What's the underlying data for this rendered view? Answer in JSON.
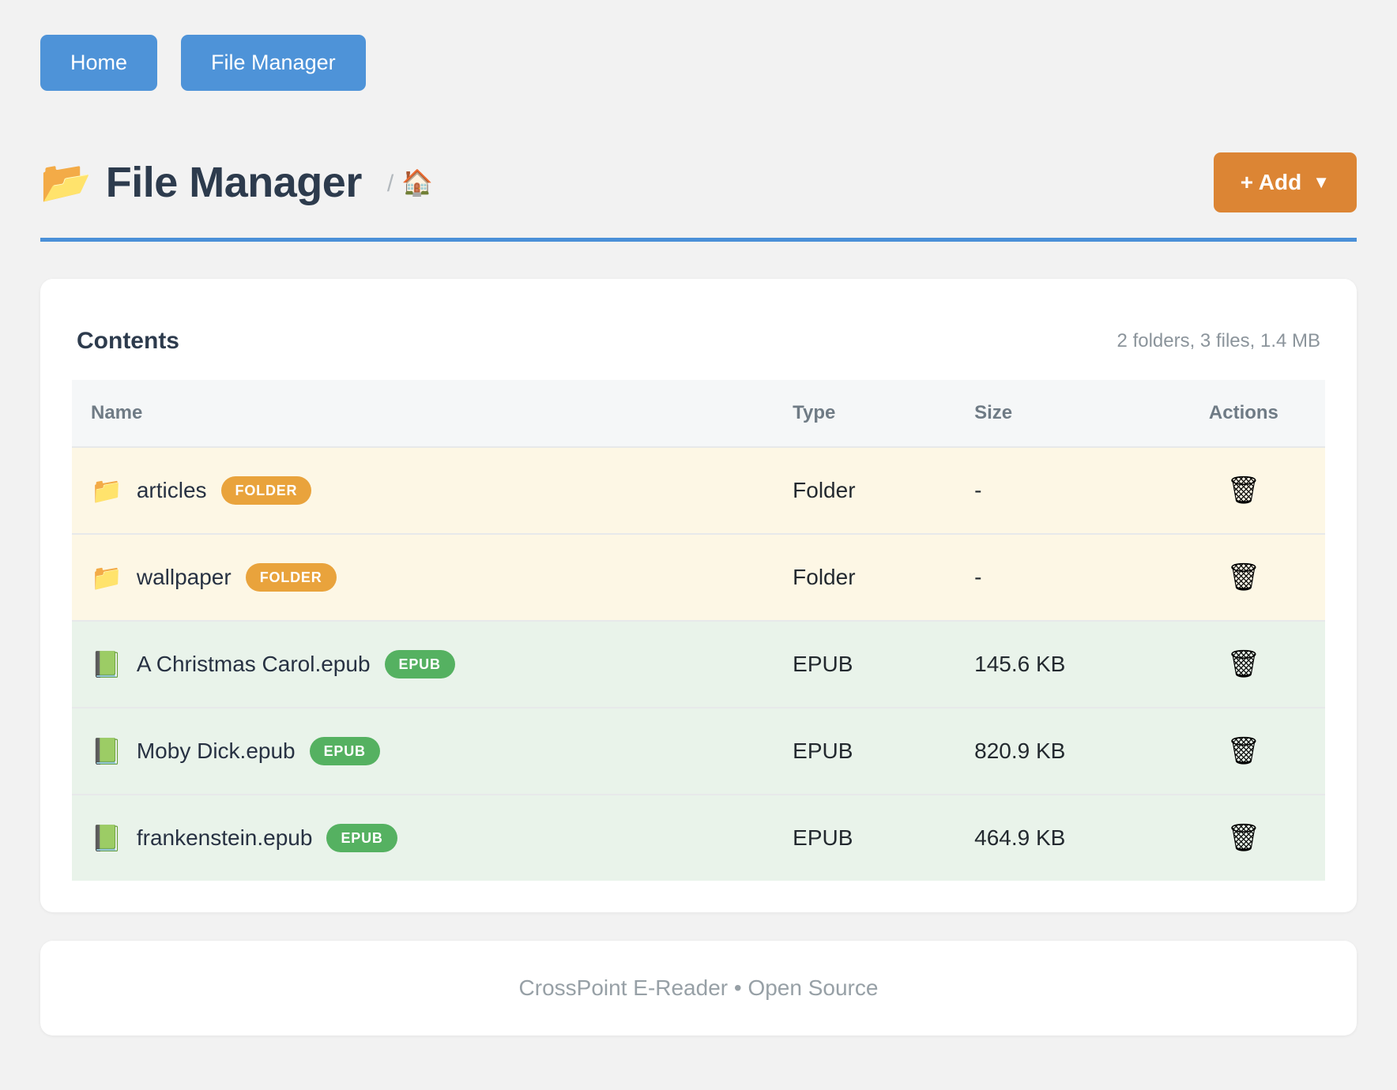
{
  "nav": {
    "home_label": "Home",
    "file_manager_label": "File Manager"
  },
  "header": {
    "title_icon": "📂",
    "title": "File Manager",
    "breadcrumb_separator": "/",
    "breadcrumb_home_icon": "🏠",
    "add_label": "+ Add",
    "add_caret": "▼"
  },
  "card": {
    "title": "Contents",
    "summary": "2 folders, 3 files, 1.4 MB",
    "table": {
      "columns": [
        "Name",
        "Type",
        "Size",
        "Actions"
      ],
      "rows": [
        {
          "icon": "📁",
          "name": "articles",
          "badge": "FOLDER",
          "kind": "folder",
          "type": "Folder",
          "size": "-",
          "action_icon": "🗑"
        },
        {
          "icon": "📁",
          "name": "wallpaper",
          "badge": "FOLDER",
          "kind": "folder",
          "type": "Folder",
          "size": "-",
          "action_icon": "🗑"
        },
        {
          "icon": "📗",
          "name": "A Christmas Carol.epub",
          "badge": "EPUB",
          "kind": "epub",
          "type": "EPUB",
          "size": "145.6 KB",
          "action_icon": "🗑"
        },
        {
          "icon": "📗",
          "name": "Moby Dick.epub",
          "badge": "EPUB",
          "kind": "epub",
          "type": "EPUB",
          "size": "820.9 KB",
          "action_icon": "🗑"
        },
        {
          "icon": "📗",
          "name": "frankenstein.epub",
          "badge": "EPUB",
          "kind": "epub",
          "type": "EPUB",
          "size": "464.9 KB",
          "action_icon": "🗑"
        }
      ]
    }
  },
  "footer": {
    "text": "CrossPoint E-Reader • Open Source"
  },
  "colors": {
    "accent_blue": "#4e93d8",
    "accent_orange": "#dc8534",
    "badge_folder": "#e9a33c",
    "badge_epub": "#55b161",
    "row_folder_bg": "#fdf7e5",
    "row_epub_bg": "#e9f3ea"
  }
}
